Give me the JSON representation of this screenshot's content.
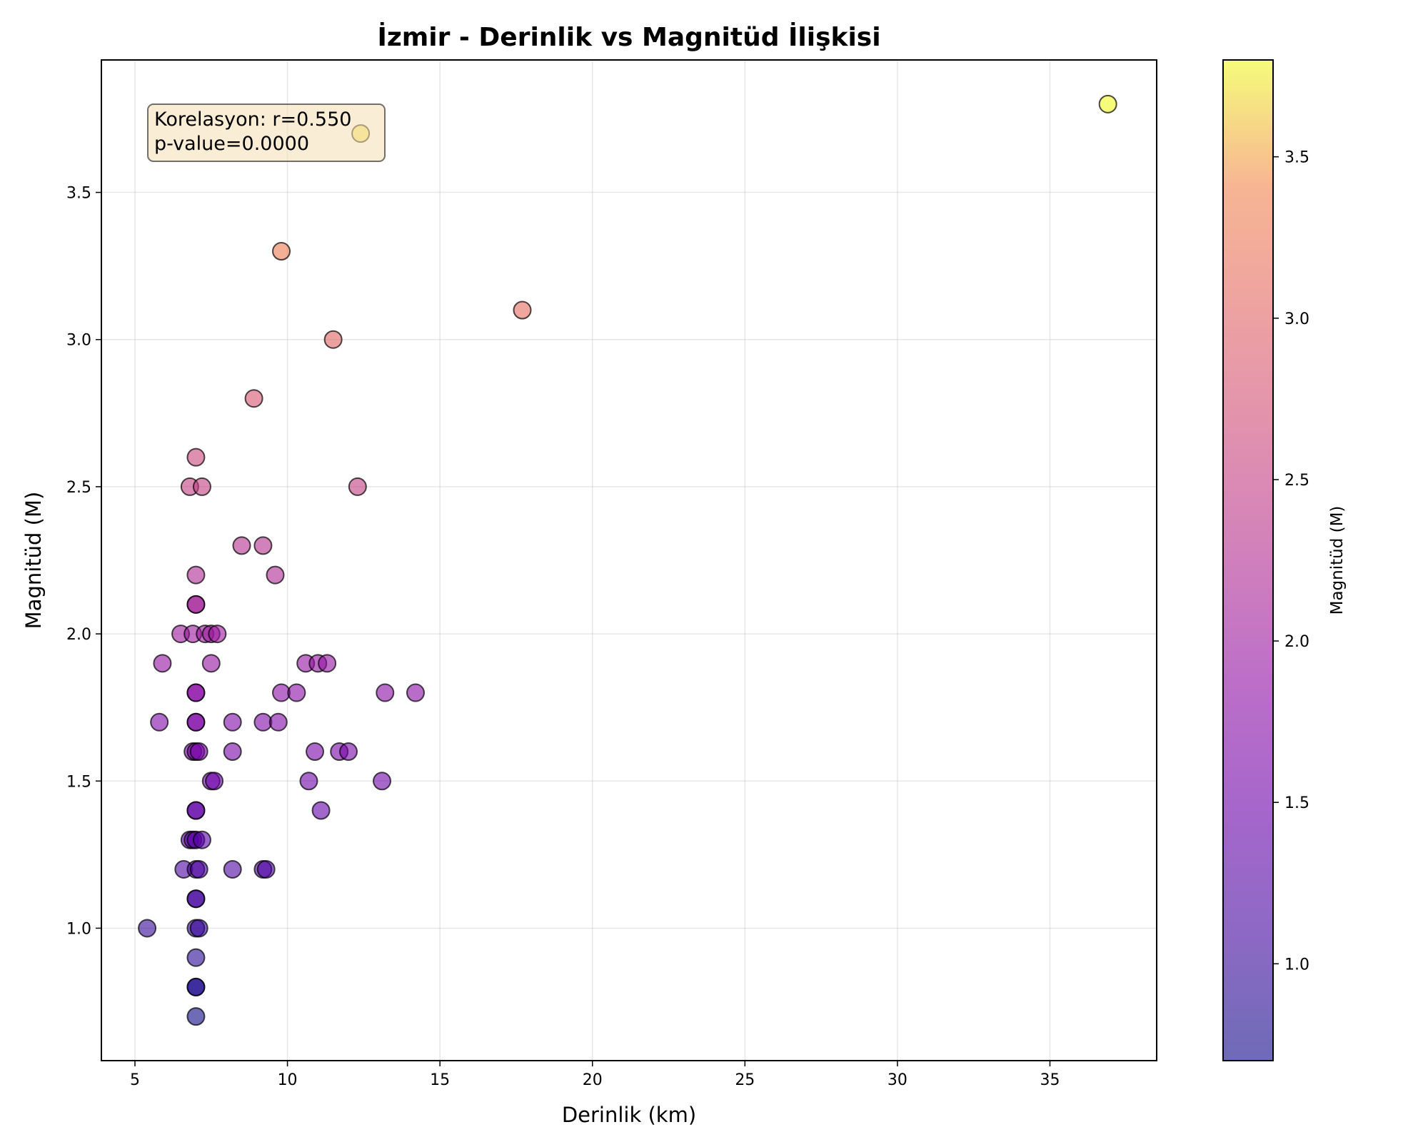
{
  "chart_data": {
    "type": "scatter",
    "title": "İzmir - Derinlik vs Magnitüd İlişkisi",
    "xlabel": "Derinlik (km)",
    "ylabel": "Magnitüd (M)",
    "xlim": [
      3.9,
      38.5
    ],
    "ylim": [
      0.55,
      3.95
    ],
    "xticks": [
      5,
      10,
      15,
      20,
      25,
      30,
      35
    ],
    "yticks": [
      1.0,
      1.5,
      2.0,
      2.5,
      3.0,
      3.5
    ],
    "grid": true,
    "colormap": "plasma",
    "colorbar": {
      "label": "Magnitüd (M)",
      "range": [
        0.7,
        3.8
      ],
      "ticks": [
        1.0,
        1.5,
        2.0,
        2.5,
        3.0,
        3.5
      ]
    },
    "annotation": {
      "lines": [
        "Korelasyon: r=0.550",
        "p-value=0.0000"
      ],
      "placement": "top-left"
    },
    "points": [
      [
        36.9,
        3.8
      ],
      [
        12.4,
        3.7
      ],
      [
        9.8,
        3.3
      ],
      [
        17.7,
        3.1
      ],
      [
        11.5,
        3.0
      ],
      [
        8.9,
        2.8
      ],
      [
        7.0,
        2.6
      ],
      [
        6.8,
        2.5
      ],
      [
        7.2,
        2.5
      ],
      [
        12.3,
        2.5
      ],
      [
        8.5,
        2.3
      ],
      [
        9.2,
        2.3
      ],
      [
        7.0,
        2.2
      ],
      [
        9.6,
        2.2
      ],
      [
        7.0,
        2.1
      ],
      [
        7.0,
        2.1
      ],
      [
        6.5,
        2.0
      ],
      [
        6.9,
        2.0
      ],
      [
        7.3,
        2.0
      ],
      [
        7.5,
        2.0
      ],
      [
        7.7,
        2.0
      ],
      [
        5.9,
        1.9
      ],
      [
        7.5,
        1.9
      ],
      [
        10.6,
        1.9
      ],
      [
        11.0,
        1.9
      ],
      [
        11.3,
        1.9
      ],
      [
        7.0,
        1.8
      ],
      [
        7.0,
        1.8
      ],
      [
        9.8,
        1.8
      ],
      [
        10.3,
        1.8
      ],
      [
        13.2,
        1.8
      ],
      [
        14.2,
        1.8
      ],
      [
        5.8,
        1.7
      ],
      [
        7.0,
        1.7
      ],
      [
        7.0,
        1.7
      ],
      [
        8.2,
        1.7
      ],
      [
        9.2,
        1.7
      ],
      [
        9.7,
        1.7
      ],
      [
        6.9,
        1.6
      ],
      [
        7.0,
        1.6
      ],
      [
        7.1,
        1.6
      ],
      [
        8.2,
        1.6
      ],
      [
        10.9,
        1.6
      ],
      [
        11.7,
        1.6
      ],
      [
        12.0,
        1.6
      ],
      [
        7.5,
        1.5
      ],
      [
        7.6,
        1.5
      ],
      [
        10.7,
        1.5
      ],
      [
        13.1,
        1.5
      ],
      [
        7.0,
        1.4
      ],
      [
        7.0,
        1.4
      ],
      [
        11.1,
        1.4
      ],
      [
        6.8,
        1.3
      ],
      [
        6.9,
        1.3
      ],
      [
        7.0,
        1.3
      ],
      [
        7.2,
        1.3
      ],
      [
        6.6,
        1.2
      ],
      [
        7.0,
        1.2
      ],
      [
        7.1,
        1.2
      ],
      [
        8.2,
        1.2
      ],
      [
        9.2,
        1.2
      ],
      [
        9.3,
        1.2
      ],
      [
        7.0,
        1.1
      ],
      [
        7.0,
        1.1
      ],
      [
        5.4,
        1.0
      ],
      [
        7.0,
        1.0
      ],
      [
        7.1,
        1.0
      ],
      [
        7.0,
        0.9
      ],
      [
        7.0,
        0.8
      ],
      [
        7.0,
        0.8
      ],
      [
        7.0,
        0.7
      ]
    ]
  }
}
